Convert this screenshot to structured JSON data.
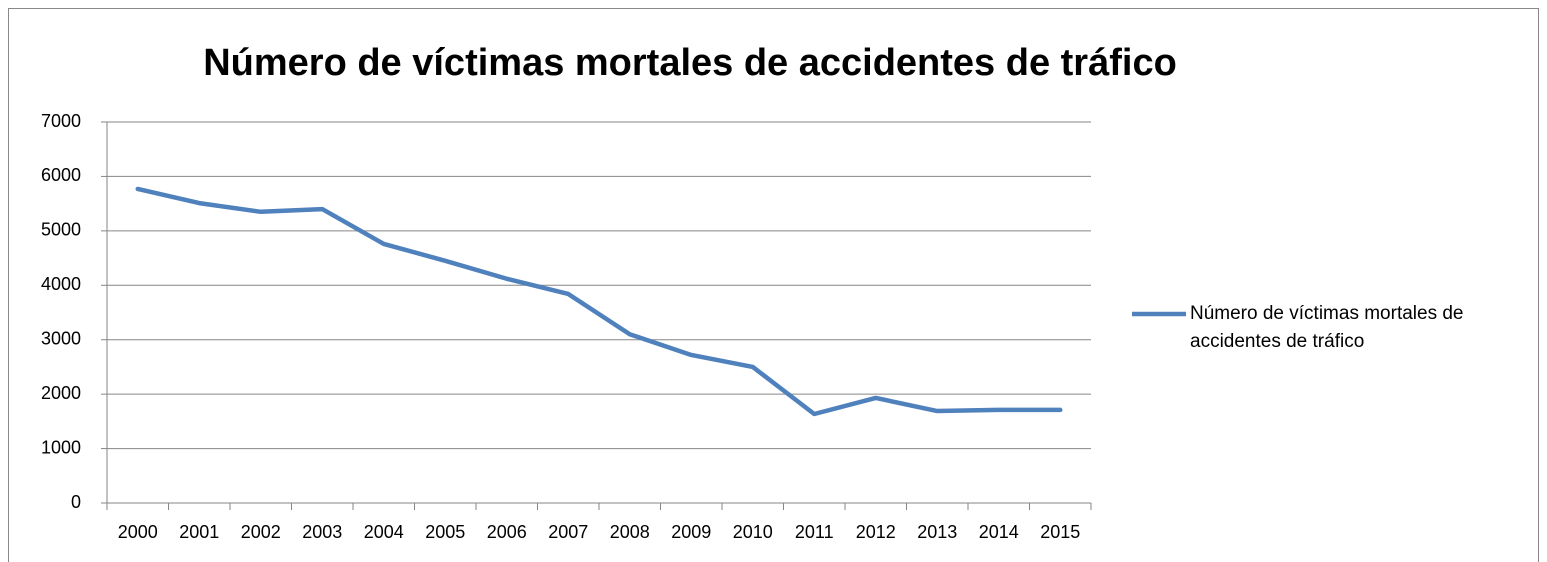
{
  "chart_data": {
    "type": "line",
    "title": "Número de víctimas mortales de accidentes de tráfico",
    "categories": [
      "2000",
      "2001",
      "2002",
      "2003",
      "2004",
      "2005",
      "2006",
      "2007",
      "2008",
      "2009",
      "2010",
      "2011",
      "2012",
      "2013",
      "2014",
      "2015"
    ],
    "series": [
      {
        "name": "Número de víctimas mortales de accidentes de tráfico",
        "color": "#4f81bd",
        "values": [
          5770,
          5510,
          5350,
          5400,
          4760,
          4450,
          4120,
          3840,
          3100,
          2720,
          2500,
          1635,
          1930,
          1690,
          1710,
          1710
        ]
      }
    ],
    "ylim": [
      0,
      7000
    ],
    "yticks": [
      0,
      1000,
      2000,
      3000,
      4000,
      5000,
      6000,
      7000
    ],
    "grid": true,
    "legend": "right"
  }
}
